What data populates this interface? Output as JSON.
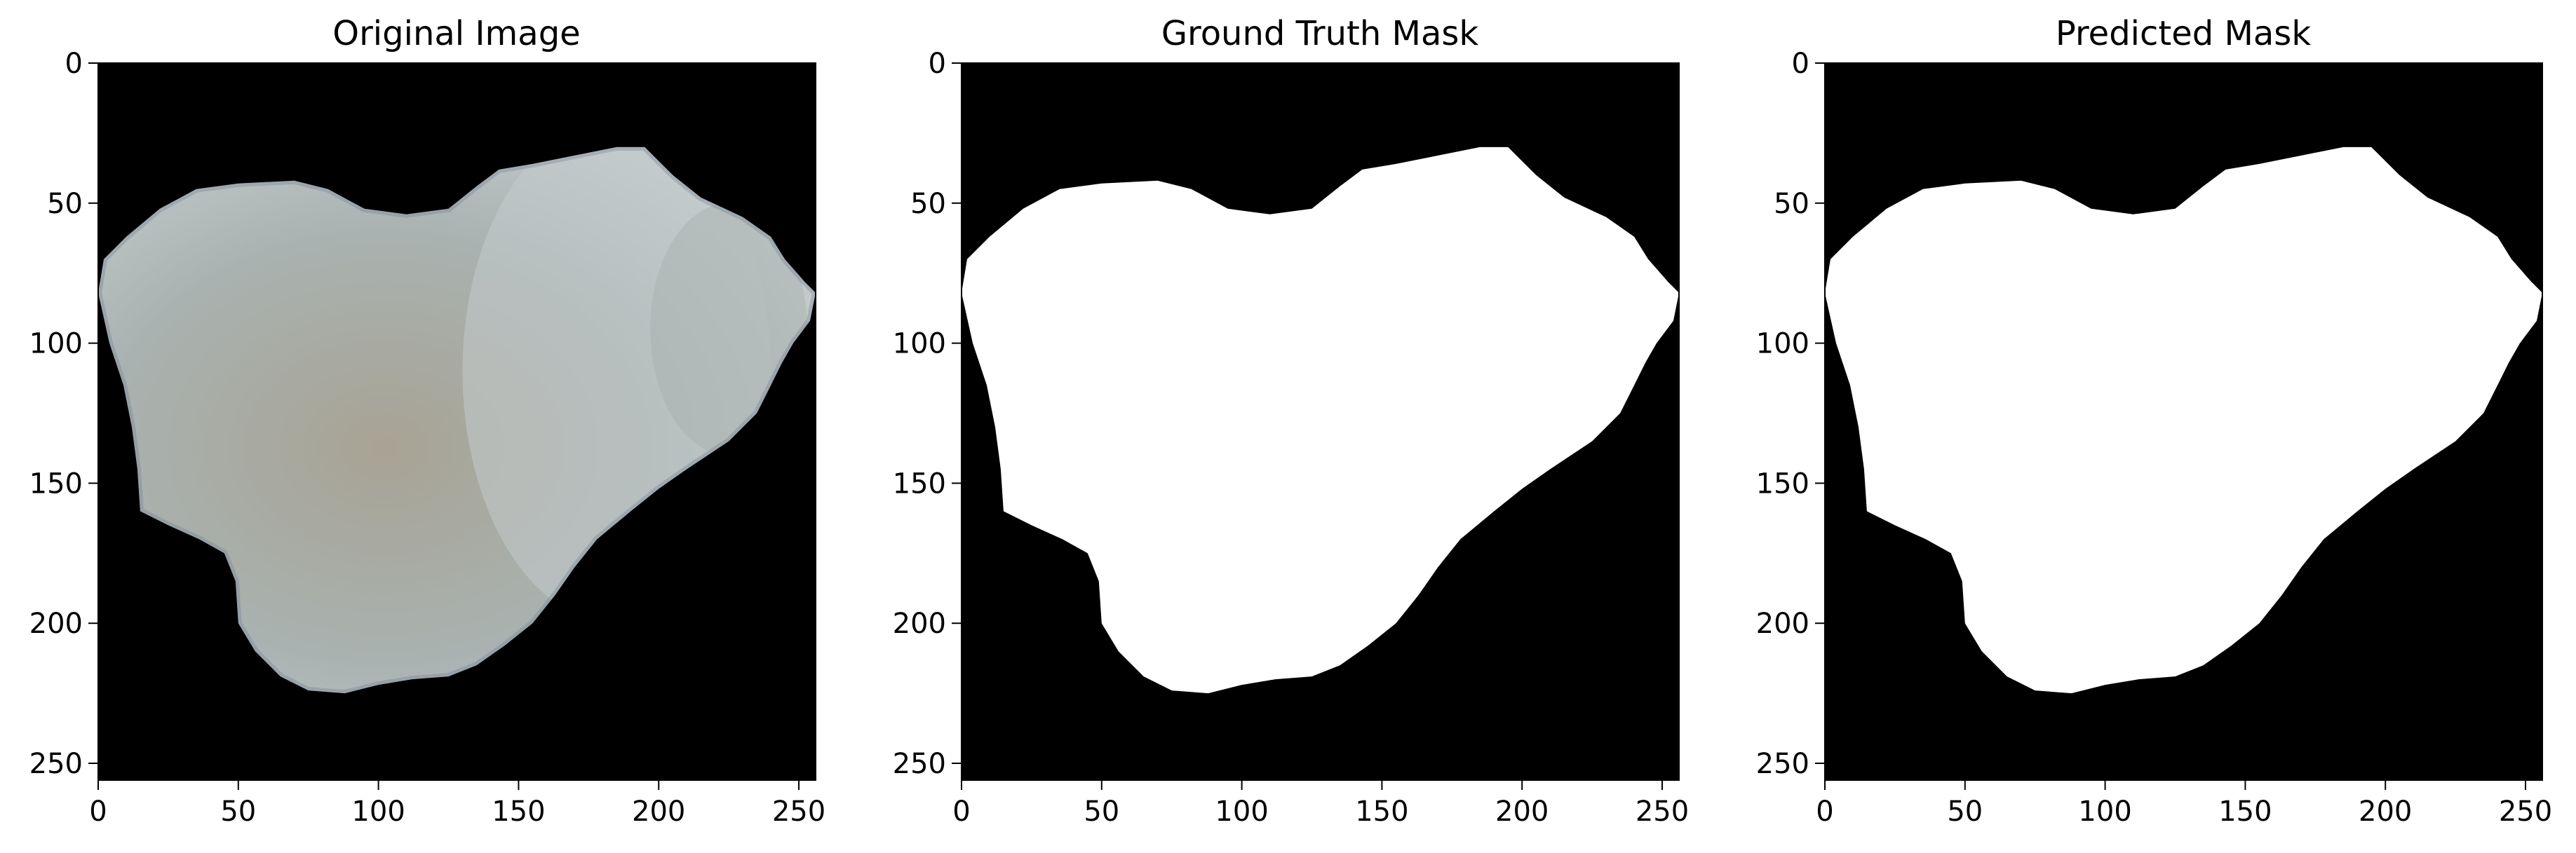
{
  "panels": [
    {
      "id": "original",
      "title": "Original Image"
    },
    {
      "id": "ground_truth",
      "title": "Ground Truth Mask"
    },
    {
      "id": "predicted",
      "title": "Predicted Mask"
    }
  ],
  "axes": {
    "x_ticks": [
      "0",
      "50",
      "100",
      "150",
      "200",
      "250"
    ],
    "y_ticks": [
      "0",
      "50",
      "100",
      "150",
      "200",
      "250"
    ]
  },
  "colors": {
    "background": "#000000",
    "mask": "#ffffff",
    "stone_base": "#a9b2b0",
    "stone_warm": "#a8a394",
    "stone_light": "#c2cbcc",
    "stone_edge": "#6f7f92"
  }
}
